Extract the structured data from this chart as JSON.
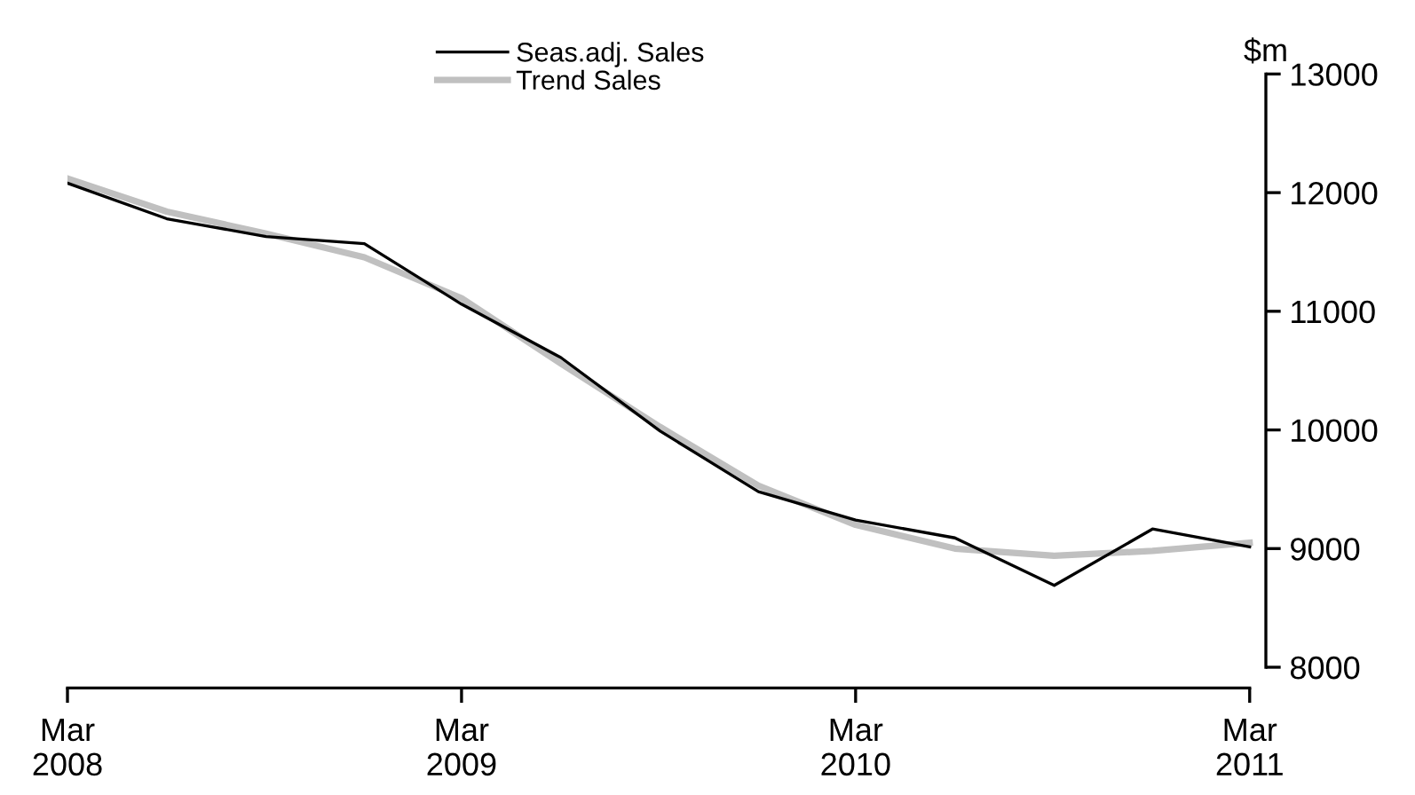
{
  "chart_data": {
    "type": "line",
    "ylabel": "$m",
    "x": [
      "2008-03",
      "2008-06",
      "2008-09",
      "2008-12",
      "2009-03",
      "2009-06",
      "2009-09",
      "2009-12",
      "2010-03",
      "2010-06",
      "2010-09",
      "2010-12",
      "2011-03"
    ],
    "series": [
      {
        "name": "Seas.adj. Sales",
        "color": "#000000",
        "values": [
          12080,
          11780,
          11630,
          11570,
          11060,
          10610,
          9990,
          9480,
          9240,
          9090,
          8690,
          9165,
          9015
        ]
      },
      {
        "name": "Trend Sales",
        "color": "#c0c0c0",
        "values": [
          12120,
          11840,
          11655,
          11455,
          11110,
          10560,
          10025,
          9530,
          9200,
          9000,
          8940,
          8980,
          9050
        ]
      }
    ],
    "xlim": [
      "2008-03",
      "2011-03-16"
    ],
    "ylim": [
      7825,
      13000
    ],
    "xticks": [
      {
        "value": "2008-03",
        "label": "Mar\n2008"
      },
      {
        "value": "2009-03",
        "label": "Mar\n2009"
      },
      {
        "value": "2010-03",
        "label": "Mar\n2010"
      },
      {
        "value": "2011-03",
        "label": "Mar\n2011"
      }
    ],
    "yticks": [
      8000,
      9000,
      10000,
      11000,
      12000,
      13000
    ],
    "grid": false,
    "legend": "top",
    "marker": "none",
    "line_style": "solid"
  }
}
